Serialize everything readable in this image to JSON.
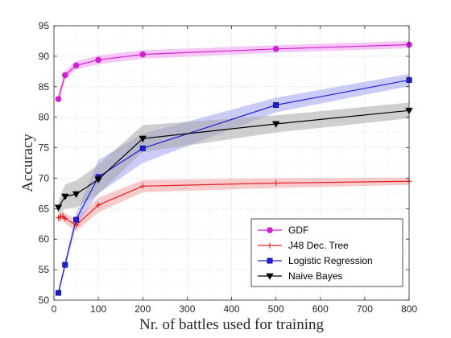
{
  "chart_data": {
    "type": "line",
    "xlabel": "Nr. of battles used for training",
    "ylabel": "Accuracy",
    "xlim": [
      0,
      800
    ],
    "ylim": [
      50,
      95
    ],
    "xticks": [
      0,
      100,
      200,
      300,
      400,
      500,
      600,
      700,
      800
    ],
    "yticks": [
      50,
      55,
      60,
      65,
      70,
      75,
      80,
      85,
      90,
      95
    ],
    "grid": true,
    "legend_position": "bottom-right",
    "series": [
      {
        "name": "GDF",
        "color": "#d020d0",
        "band_color": "#ee99ee",
        "marker": "circle",
        "x": [
          10,
          25,
          50,
          100,
          200,
          500,
          800
        ],
        "y": [
          83.0,
          86.9,
          88.5,
          89.4,
          90.3,
          91.2,
          91.9
        ],
        "lower": [
          82.0,
          86.2,
          87.8,
          88.7,
          89.6,
          90.6,
          91.3
        ],
        "upper": [
          84.0,
          87.6,
          89.2,
          90.1,
          91.0,
          91.8,
          92.5
        ]
      },
      {
        "name": "J48 Dec. Tree",
        "color": "#e02020",
        "band_color": "#f0a0a0",
        "marker": "plus",
        "x": [
          10,
          15,
          20,
          25,
          50,
          100,
          200,
          500,
          800
        ],
        "y": [
          63.5,
          63.7,
          63.8,
          63.4,
          62.3,
          65.6,
          68.7,
          69.2,
          69.5
        ],
        "lower": [
          62.7,
          62.9,
          63.0,
          62.6,
          61.3,
          64.4,
          67.7,
          68.4,
          68.9
        ],
        "upper": [
          64.3,
          64.5,
          64.6,
          64.2,
          63.3,
          66.8,
          69.7,
          70.0,
          70.1
        ]
      },
      {
        "name": "Logistic Regression",
        "color": "#2020d0",
        "band_color": "#a0a0f0",
        "marker": "square",
        "x": [
          10,
          25,
          50,
          100,
          200,
          500,
          800
        ],
        "y": [
          51.2,
          55.8,
          63.2,
          70.2,
          74.9,
          82.0,
          86.1
        ],
        "lower": [
          50.6,
          55.0,
          62.2,
          67.5,
          72.5,
          80.8,
          85.1
        ],
        "upper": [
          51.8,
          56.6,
          64.2,
          73.0,
          77.3,
          83.2,
          87.1
        ]
      },
      {
        "name": "Naive Bayes",
        "color": "#000000",
        "band_color": "#a8a8a8",
        "marker": "triangle-down",
        "x": [
          10,
          25,
          50,
          100,
          200,
          500,
          800
        ],
        "y": [
          65.2,
          67.0,
          67.4,
          69.8,
          76.5,
          78.9,
          81.1
        ],
        "lower": [
          64.2,
          65.0,
          65.2,
          67.4,
          74.3,
          77.5,
          79.8
        ],
        "upper": [
          66.2,
          69.0,
          69.6,
          72.2,
          78.7,
          80.3,
          82.4
        ]
      }
    ]
  }
}
